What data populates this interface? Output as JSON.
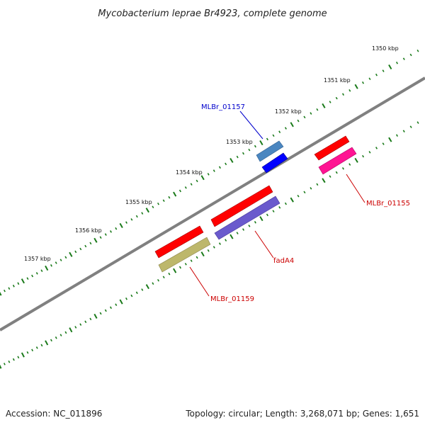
{
  "title": "Mycobacterium leprae Br4923, complete genome",
  "scale_labels": [
    "1350 kbp",
    "1351 kbp",
    "1352 kbp",
    "1353 kbp",
    "1354 kbp",
    "1355 kbp",
    "1356 kbp",
    "1357 kbp"
  ],
  "genes": [
    {
      "label": "MLBr_01157",
      "color": "#0000cc"
    },
    {
      "label": "MLBr_01155",
      "color": "#cc0000"
    },
    {
      "label": "fadA4",
      "color": "#cc0000"
    },
    {
      "label": "MLBr_01159",
      "color": "#cc0000"
    }
  ],
  "colors": {
    "backbone": "#808080",
    "ticks": "#1a7a1a",
    "cds": "#ff0000",
    "gene_steelblue": "#4a86c0",
    "gene_blue": "#0000ff",
    "gene_pink": "#ff1493",
    "gene_purple": "#6a5acd",
    "gene_khaki": "#bdb76b"
  },
  "footer": {
    "accession": "Accession: NC_011896",
    "summary": "Topology: circular; Length: 3,268,071 bp; Genes: 1,651"
  }
}
